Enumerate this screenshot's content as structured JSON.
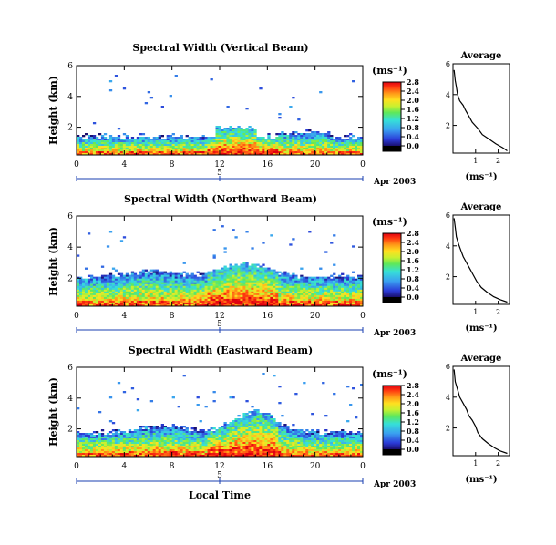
{
  "shared": {
    "day_label": "5",
    "month_label": "Apr 2003",
    "xlabel": "Local Time",
    "units_label": "(ms⁻¹)",
    "avg_title": "Average",
    "avg_xlabel": "(ms⁻¹)",
    "ylabel": "Height (km)"
  },
  "chart_data": [
    {
      "type": "heatmap",
      "title": "Spectral Width (Vertical Beam)",
      "x_ticks": [
        "0",
        "4",
        "8",
        "12",
        "16",
        "20",
        "0"
      ],
      "y_ticks": [
        "2",
        "4",
        "6"
      ],
      "xlim": [
        0,
        24
      ],
      "ylim": [
        0.2,
        6.0
      ],
      "colorbar_ticks": [
        "0.0",
        "0.4",
        "0.8",
        "1.2",
        "1.6",
        "2.0",
        "2.4",
        "2.8"
      ],
      "colorbar_range": [
        0,
        2.8
      ],
      "average_profile": {
        "x_ticks": [
          "1",
          "2"
        ],
        "xlim": [
          0,
          2.5
        ],
        "y_ticks": [
          "2",
          "4",
          "6"
        ],
        "ylim": [
          0.2,
          6.0
        ],
        "points": [
          [
            0.05,
            5.6
          ],
          [
            0.1,
            4.9
          ],
          [
            0.15,
            4.5
          ],
          [
            0.2,
            4.0
          ],
          [
            0.3,
            3.6
          ],
          [
            0.45,
            3.3
          ],
          [
            0.55,
            3.0
          ],
          [
            0.7,
            2.6
          ],
          [
            0.85,
            2.2
          ],
          [
            1.1,
            1.8
          ],
          [
            1.3,
            1.4
          ],
          [
            1.6,
            1.1
          ],
          [
            1.9,
            0.8
          ],
          [
            2.2,
            0.55
          ],
          [
            2.4,
            0.35
          ]
        ]
      }
    },
    {
      "type": "heatmap",
      "title": "Spectral Width (Northward Beam)",
      "x_ticks": [
        "0",
        "4",
        "8",
        "12",
        "16",
        "20",
        "0"
      ],
      "y_ticks": [
        "2",
        "4",
        "6"
      ],
      "xlim": [
        0,
        24
      ],
      "ylim": [
        0.2,
        6.0
      ],
      "colorbar_ticks": [
        "0.0",
        "0.4",
        "0.8",
        "1.2",
        "1.6",
        "2.0",
        "2.4",
        "2.8"
      ],
      "colorbar_range": [
        0,
        2.8
      ],
      "average_profile": {
        "x_ticks": [
          "1",
          "2"
        ],
        "xlim": [
          0,
          2.5
        ],
        "y_ticks": [
          "2",
          "4",
          "6"
        ],
        "ylim": [
          0.2,
          6.0
        ],
        "points": [
          [
            0.05,
            5.8
          ],
          [
            0.1,
            5.2
          ],
          [
            0.15,
            4.6
          ],
          [
            0.25,
            4.1
          ],
          [
            0.35,
            3.7
          ],
          [
            0.45,
            3.3
          ],
          [
            0.6,
            2.9
          ],
          [
            0.75,
            2.5
          ],
          [
            0.9,
            2.1
          ],
          [
            1.05,
            1.7
          ],
          [
            1.25,
            1.3
          ],
          [
            1.5,
            1.0
          ],
          [
            1.8,
            0.7
          ],
          [
            2.1,
            0.5
          ],
          [
            2.4,
            0.35
          ]
        ]
      }
    },
    {
      "type": "heatmap",
      "title": "Spectral Width (Eastward Beam)",
      "x_ticks": [
        "0",
        "4",
        "8",
        "12",
        "16",
        "20",
        "0"
      ],
      "y_ticks": [
        "2",
        "4",
        "6"
      ],
      "xlim": [
        0,
        24
      ],
      "ylim": [
        0.2,
        6.0
      ],
      "colorbar_ticks": [
        "0.0",
        "0.4",
        "0.8",
        "1.2",
        "1.6",
        "2.0",
        "2.4",
        "2.8"
      ],
      "colorbar_range": [
        0,
        2.8
      ],
      "average_profile": {
        "x_ticks": [
          "1",
          "2"
        ],
        "xlim": [
          0,
          2.5
        ],
        "y_ticks": [
          "2",
          "4",
          "6"
        ],
        "ylim": [
          0.2,
          6.0
        ],
        "points": [
          [
            0.05,
            5.8
          ],
          [
            0.1,
            5.0
          ],
          [
            0.2,
            4.5
          ],
          [
            0.3,
            4.0
          ],
          [
            0.45,
            3.6
          ],
          [
            0.6,
            3.2
          ],
          [
            0.7,
            2.8
          ],
          [
            0.85,
            2.5
          ],
          [
            1.0,
            2.1
          ],
          [
            1.1,
            1.7
          ],
          [
            1.3,
            1.3
          ],
          [
            1.55,
            1.0
          ],
          [
            1.85,
            0.7
          ],
          [
            2.1,
            0.5
          ],
          [
            2.4,
            0.35
          ]
        ]
      }
    }
  ]
}
